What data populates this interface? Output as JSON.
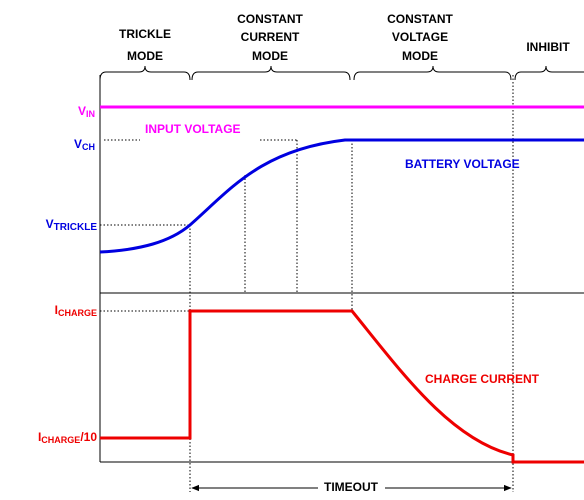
{
  "modes": [
    "TRICKLE MODE",
    "CONSTANT CURRENT MODE",
    "CONSTANT VOLTAGE MODE",
    "INHIBIT"
  ],
  "modes_lines": [
    [
      "TRICKLE",
      "MODE"
    ],
    [
      "CONSTANT",
      "CURRENT",
      "MODE"
    ],
    [
      "CONSTANT",
      "VOLTAGE",
      "MODE"
    ],
    [
      "INHIBIT"
    ]
  ],
  "voltage_labels": {
    "vin": {
      "main": "V",
      "sub": "IN"
    },
    "vch": {
      "main": "V",
      "sub": "CH"
    },
    "vtrickle": {
      "main": "V",
      "sub": "TRICKLE"
    }
  },
  "current_labels": {
    "icharge": {
      "main": "I",
      "sub": "CHARGE"
    },
    "icharge10": {
      "main": "I",
      "sub": "CHARGE",
      "suffix": "/10"
    }
  },
  "annotations": {
    "input_voltage": "INPUT VOLTAGE",
    "battery_voltage": "BATTERY VOLTAGE",
    "charge_current": "CHARGE CURRENT",
    "timeout": "TIMEOUT"
  }
}
